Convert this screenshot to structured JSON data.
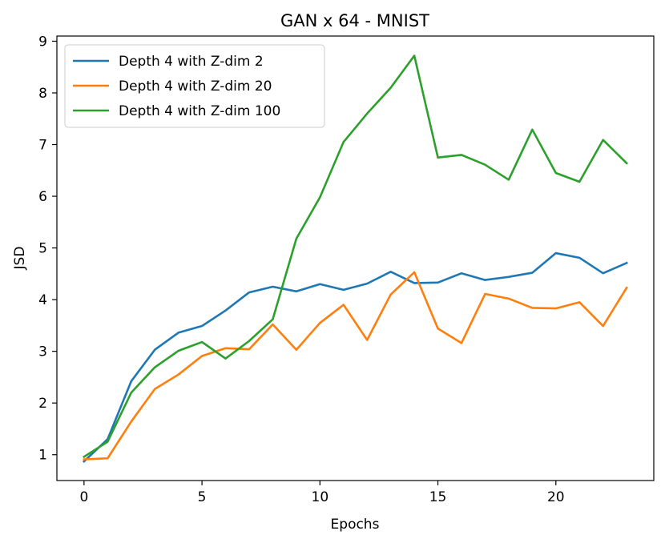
{
  "chart_data": {
    "type": "line",
    "title": "GAN x 64 - MNIST",
    "xlabel": "Epochs",
    "ylabel": "JSD",
    "xlim": [
      -1.15,
      24.15
    ],
    "ylim": [
      0.5,
      9.1
    ],
    "xticks": [
      0,
      5,
      10,
      15,
      20
    ],
    "yticks": [
      1,
      2,
      3,
      4,
      5,
      6,
      7,
      8,
      9
    ],
    "grid": false,
    "legend_position": "top-left",
    "x": [
      0,
      1,
      2,
      3,
      4,
      5,
      6,
      7,
      8,
      9,
      10,
      11,
      12,
      13,
      14,
      15,
      16,
      17,
      18,
      19,
      20,
      21,
      22,
      23
    ],
    "series": [
      {
        "name": "Depth 4 with Z-dim 2",
        "color": "#1f77b4",
        "values": [
          0.87,
          1.3,
          2.42,
          3.03,
          3.36,
          3.49,
          3.79,
          4.14,
          4.25,
          4.16,
          4.3,
          4.19,
          4.31,
          4.54,
          4.32,
          4.33,
          4.51,
          4.38,
          4.44,
          4.52,
          4.9,
          4.81,
          4.51,
          4.71
        ]
      },
      {
        "name": "Depth 4 with Z-dim 20",
        "color": "#ff7f0e",
        "values": [
          0.91,
          0.93,
          1.64,
          2.27,
          2.55,
          2.91,
          3.06,
          3.04,
          3.52,
          3.03,
          3.55,
          3.9,
          3.22,
          4.1,
          4.53,
          3.44,
          3.16,
          4.11,
          4.02,
          3.84,
          3.83,
          3.95,
          3.49,
          4.23
        ]
      },
      {
        "name": "Depth 4 with Z-dim 100",
        "color": "#2ca02c",
        "values": [
          0.96,
          1.25,
          2.2,
          2.69,
          3.01,
          3.18,
          2.86,
          3.2,
          3.62,
          5.18,
          5.98,
          7.05,
          7.6,
          8.1,
          8.72,
          6.75,
          6.8,
          6.61,
          6.32,
          7.29,
          6.45,
          6.28,
          7.09,
          6.64
        ]
      }
    ]
  }
}
